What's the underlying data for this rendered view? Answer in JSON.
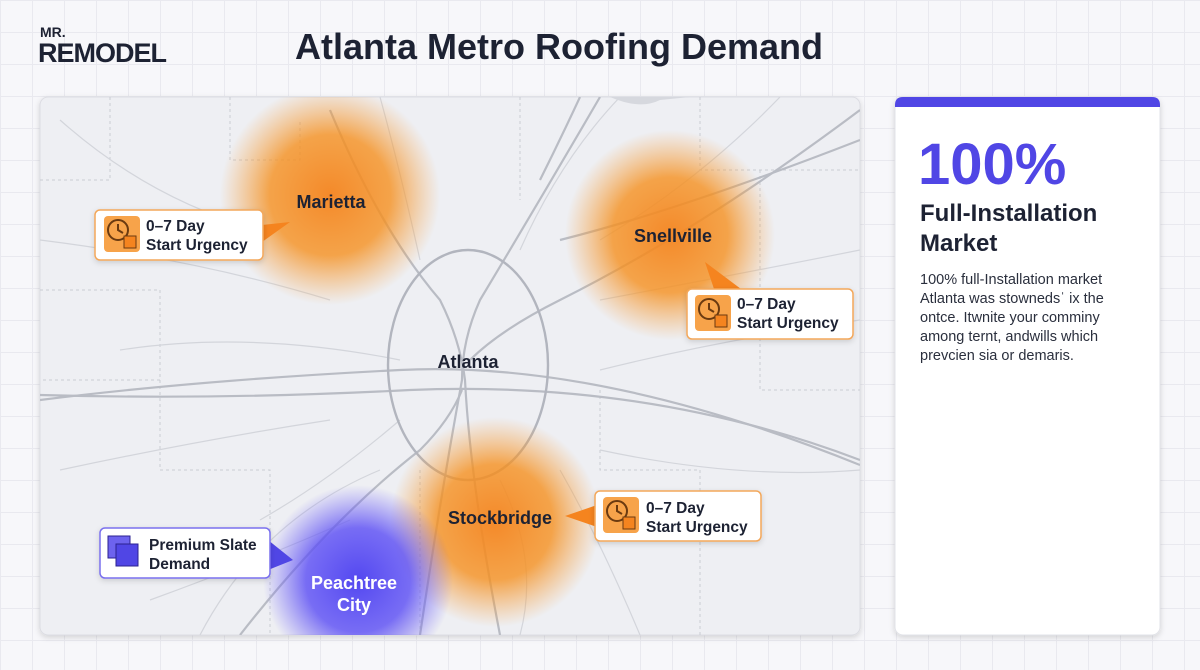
{
  "header": {
    "logo": {
      "top": "MR.",
      "bottom": "REMODEL"
    },
    "title": "Atlanta Metro Roofing Demand"
  },
  "map": {
    "cities": [
      {
        "label": "Marietta"
      },
      {
        "label": "Snellville"
      },
      {
        "label": "Atlanta"
      },
      {
        "label": "Stockbridge"
      },
      {
        "lines": [
          "Peachtree",
          "City"
        ]
      }
    ],
    "callouts": [
      {
        "lines": [
          "0–7 Day",
          "Start Urgency"
        ]
      },
      {
        "lines": [
          "0–7 Day",
          "Start Urgency"
        ]
      },
      {
        "lines": [
          "0–7 Day",
          "Start Urgency"
        ]
      },
      {
        "lines": [
          "Premium Slate",
          "Demand"
        ]
      }
    ]
  },
  "panel": {
    "stat": "100%",
    "heading": [
      "Full-Installation",
      "Market"
    ],
    "body": [
      "100% full-Installation market",
      "Atlanta was stownedsˈ ix the",
      "ontce. Itwnite your comminy",
      "among ternt, andwills which",
      "prevcien sia or demaris."
    ]
  }
}
